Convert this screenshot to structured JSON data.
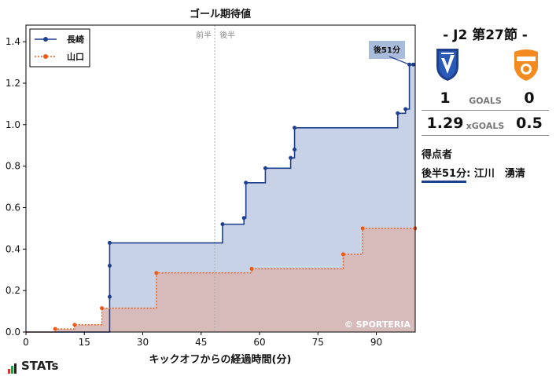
{
  "chart_data": {
    "type": "line",
    "title": "ゴール期待値",
    "xlabel": "キックオフからの経過時間(分)",
    "ylabel": "",
    "xlim": [
      0,
      100
    ],
    "ylim": [
      0,
      1.48
    ],
    "xticks": [
      0,
      15,
      30,
      45,
      60,
      75,
      90
    ],
    "yticks": [
      0.0,
      0.2,
      0.4,
      0.6,
      0.8,
      1.0,
      1.2,
      1.4
    ],
    "half_time_x": 48.5,
    "half_labels": {
      "first": "前半",
      "second": "後半"
    },
    "legend_position": "top-left",
    "grid": false,
    "series": [
      {
        "name": "長崎",
        "color": "#1d3f8c",
        "fill": "#c7d2e6",
        "linestyle": "solid",
        "points": [
          [
            21.5,
            0.17
          ],
          [
            21.5,
            0.32
          ],
          [
            21.5,
            0.43
          ],
          [
            50.5,
            0.52
          ],
          [
            56.0,
            0.55
          ],
          [
            56.5,
            0.72
          ],
          [
            61.5,
            0.79
          ],
          [
            68.0,
            0.84
          ],
          [
            69.0,
            0.88
          ],
          [
            69.0,
            0.985
          ],
          [
            95.5,
            1.055
          ],
          [
            97.5,
            1.075
          ],
          [
            98.5,
            1.29
          ],
          [
            99.5,
            1.29
          ]
        ]
      },
      {
        "name": "山口",
        "color": "#f05a14",
        "fill": "#d8b7b5",
        "linestyle": "dotted",
        "points": [
          [
            7.5,
            0.015
          ],
          [
            12.5,
            0.035
          ],
          [
            19.5,
            0.115
          ],
          [
            33.5,
            0.285
          ],
          [
            58.0,
            0.305
          ],
          [
            81.5,
            0.375
          ],
          [
            86.5,
            0.5
          ],
          [
            100,
            0.5
          ]
        ]
      }
    ],
    "annotations": [
      {
        "text": "後51分",
        "x": 98.5,
        "y": 1.29
      }
    ]
  },
  "watermark": "© SPORTERIA",
  "match": {
    "title": "- J2 第27節 -",
    "home_team": "長崎",
    "away_team": "山口",
    "home_crest_color": "#1d3f8c",
    "away_crest_color": "#f28a1e",
    "goals_label": "GOALS",
    "home_goals": "1",
    "away_goals": "0",
    "xg_label": "xGOALS",
    "home_xg": "1.29",
    "away_xg": "0.5"
  },
  "scorers": {
    "title": "得点者",
    "items": [
      {
        "time": "後半51分",
        "name": ": 江川　湧清"
      }
    ]
  },
  "brand": "STATs"
}
